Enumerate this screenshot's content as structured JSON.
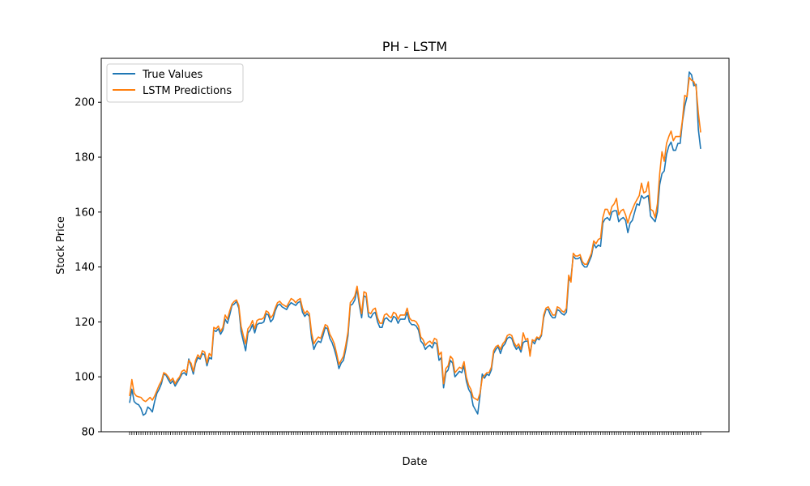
{
  "chart_data": {
    "type": "line",
    "title": "PH - LSTM",
    "xlabel": "Date",
    "ylabel": "Stock Price",
    "ylim": [
      80,
      216
    ],
    "yticks": [
      80,
      100,
      120,
      140,
      160,
      180,
      200
    ],
    "grid": false,
    "legend_position": "top-left",
    "xtick_labels_note": "",
    "series": [
      {
        "name": "True Values",
        "color": "#1f77b4",
        "values": [
          90.5,
          95.5,
          91,
          90.2,
          89.8,
          88.5,
          86,
          86.6,
          89,
          88.3,
          87.2,
          91,
          94,
          95.5,
          97.5,
          101,
          100.6,
          99,
          97.6,
          98.6,
          96.6,
          98,
          99.4,
          101,
          101.5,
          100.6,
          106.5,
          104,
          101,
          105,
          107,
          106.5,
          108.5,
          108,
          104,
          107,
          106.5,
          117,
          116.5,
          117.5,
          115.5,
          117,
          121,
          119.5,
          122.5,
          126,
          126.5,
          127.5,
          125,
          116.5,
          113,
          109.5,
          116,
          117,
          119,
          116,
          119,
          119.5,
          119.5,
          120,
          123,
          122.5,
          120,
          121,
          124,
          126,
          126.5,
          125.5,
          125,
          124.5,
          126,
          127,
          126.5,
          126,
          127,
          127.5,
          123.5,
          122,
          123,
          122,
          114,
          110,
          112,
          113,
          112.5,
          115,
          118,
          117.5,
          114,
          112.5,
          110,
          107,
          103,
          105,
          106,
          110,
          115,
          126,
          126.5,
          128,
          132,
          126,
          121.5,
          129.5,
          129,
          122,
          121.5,
          123,
          123.5,
          120,
          118,
          118,
          121,
          121.5,
          120.5,
          120,
          122,
          121.5,
          119.5,
          121,
          121,
          121,
          123.5,
          120,
          119,
          119,
          118.5,
          117,
          113,
          112,
          110,
          111,
          111.5,
          110.5,
          112.5,
          112,
          106,
          107,
          96,
          101.5,
          102.5,
          106,
          105,
          100,
          101,
          102,
          101.5,
          104,
          98.5,
          95.5,
          94,
          89.5,
          88,
          86.5,
          93,
          101,
          99.5,
          101,
          100.5,
          102.5,
          108.5,
          110,
          111,
          108.5,
          111,
          112,
          114,
          114.5,
          114,
          111.5,
          110,
          111,
          109,
          112.5,
          113,
          113,
          108.5,
          113,
          112,
          114,
          113.5,
          115,
          121.5,
          124.5,
          124.5,
          122.5,
          121.5,
          121.5,
          124.5,
          124,
          123,
          122.5,
          123.5,
          135,
          136,
          144,
          143,
          143,
          143.5,
          141,
          140,
          140,
          142,
          144,
          148.5,
          147,
          148,
          147.5,
          156,
          157.5,
          158,
          157,
          160,
          160.5,
          160.5,
          156.5,
          157.5,
          158,
          157,
          152.5,
          156,
          157,
          160,
          163,
          162.5,
          166,
          165,
          165.5,
          166,
          158.5,
          157.5,
          156.5,
          160,
          170,
          174,
          175,
          181,
          184,
          185.5,
          182.5,
          182.5,
          185,
          185,
          193,
          198.5,
          202,
          211,
          210,
          206,
          206.5,
          190,
          183
        ]
      },
      {
        "name": "LSTM Predictions",
        "color": "#ff7f0e",
        "values": [
          93,
          99,
          94,
          93,
          92.7,
          92.5,
          91.5,
          91,
          91.7,
          92.5,
          91.5,
          93,
          95,
          97,
          98.5,
          101.5,
          101,
          100,
          98.5,
          99.5,
          97.5,
          99,
          100,
          102,
          102.5,
          101.5,
          106,
          105,
          102,
          106,
          108,
          107,
          109.5,
          109,
          105,
          108.5,
          107.5,
          118,
          117.5,
          118.5,
          116.5,
          118,
          122.5,
          121,
          124,
          126.5,
          127.5,
          128,
          126,
          118.5,
          115,
          112,
          117.5,
          118.5,
          120.5,
          117.5,
          120.5,
          121,
          121,
          121.5,
          124,
          123.5,
          121.5,
          122.5,
          125,
          127,
          127.5,
          126.5,
          126,
          125.5,
          127,
          128.5,
          128,
          127,
          128,
          128.5,
          125,
          123,
          124,
          123,
          116,
          112,
          113.5,
          114.5,
          114,
          116.5,
          119,
          118.5,
          115.5,
          114,
          112,
          108.5,
          104.5,
          106,
          107.5,
          111.5,
          116.5,
          127,
          128,
          129.5,
          133,
          127.5,
          123,
          131,
          130.5,
          123.5,
          123,
          124.5,
          125,
          121.5,
          119.5,
          119.5,
          122.5,
          123,
          122,
          121.5,
          123.5,
          123,
          121,
          122.5,
          122.5,
          122.5,
          125,
          121.5,
          120.5,
          120.5,
          120,
          118.5,
          114.5,
          113.5,
          111.5,
          112.5,
          113,
          112,
          114,
          113.5,
          108,
          109,
          97.5,
          103,
          104,
          107.5,
          106.5,
          101.5,
          102.5,
          103.5,
          103,
          105.5,
          100,
          97,
          95.5,
          92.5,
          92,
          91.5,
          94,
          99.5,
          100.5,
          101.5,
          101.5,
          103.5,
          109.5,
          111,
          111.5,
          110,
          112,
          113,
          115,
          115.5,
          115,
          112.5,
          111,
          112,
          110,
          116,
          113.5,
          114,
          107.5,
          113.5,
          113,
          114.5,
          114,
          115.5,
          122.5,
          125,
          125.5,
          124,
          122.5,
          122.5,
          125.5,
          125,
          124,
          123.5,
          125,
          137,
          134.5,
          145,
          144,
          144,
          144.5,
          142,
          141,
          141,
          143,
          145,
          149.5,
          148.5,
          150,
          150.5,
          158,
          161,
          161,
          159,
          162,
          163,
          165,
          159,
          160.5,
          161,
          159,
          156,
          159,
          161,
          163,
          164.5,
          166,
          170.5,
          167,
          167.5,
          171,
          161,
          160.5,
          158,
          163,
          174,
          182,
          178.5,
          185,
          187.5,
          189.5,
          186,
          187.5,
          187.5,
          187.5,
          193.5,
          202.5,
          202,
          209,
          208,
          207.5,
          205.5,
          196,
          189
        ]
      }
    ]
  }
}
